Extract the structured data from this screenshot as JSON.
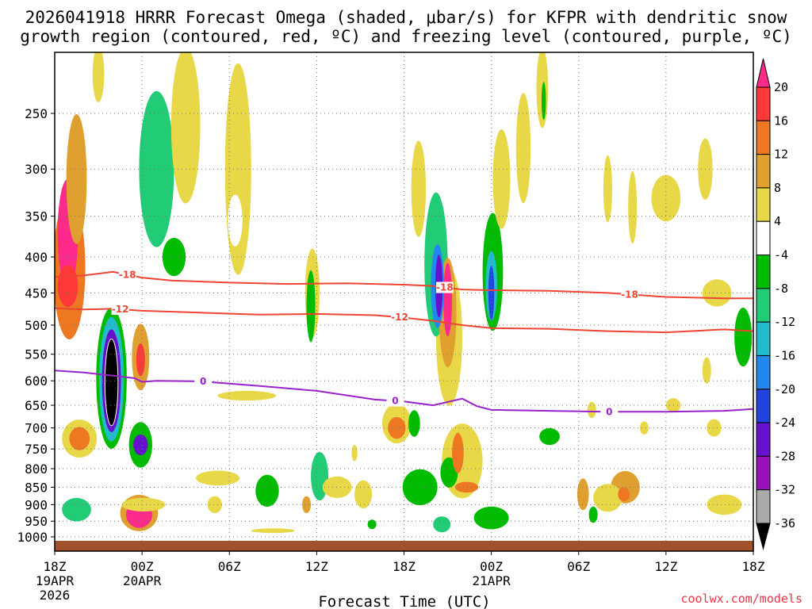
{
  "colors": {
    "dgz": "#ee4433",
    "freezing": "#9922cc",
    "ground": "#a0522d",
    "credit": "#ee3344"
  },
  "chart_data": {
    "type": "heatmap",
    "title_line1": "2026041918 HRRR Forecast Omega (shaded, μbar/s) for KFPR with dendritic snow",
    "title_line2": "growth region (contoured, red, ºC) and freezing level (contoured, purple, ºC)",
    "xlabel": "Forecast Time (UTC)",
    "ylabel": "",
    "credit": "coolwx.com/models",
    "x_range_hours": [
      0,
      48
    ],
    "y_range_mb": [
      200,
      1020
    ],
    "x_ticks": [
      {
        "hour": 0,
        "line1": "18Z",
        "line2": "19APR",
        "line3": "2026"
      },
      {
        "hour": 6,
        "line1": "00Z",
        "line2": "20APR",
        "line3": ""
      },
      {
        "hour": 12,
        "line1": "06Z",
        "line2": "",
        "line3": ""
      },
      {
        "hour": 18,
        "line1": "12Z",
        "line2": "",
        "line3": ""
      },
      {
        "hour": 24,
        "line1": "18Z",
        "line2": "",
        "line3": ""
      },
      {
        "hour": 30,
        "line1": "00Z",
        "line2": "21APR",
        "line3": ""
      },
      {
        "hour": 36,
        "line1": "06Z",
        "line2": "",
        "line3": ""
      },
      {
        "hour": 42,
        "line1": "12Z",
        "line2": "",
        "line3": ""
      },
      {
        "hour": 48,
        "line1": "18Z",
        "line2": "",
        "line3": ""
      }
    ],
    "y_ticks": [
      250,
      300,
      350,
      400,
      450,
      500,
      550,
      600,
      650,
      700,
      750,
      800,
      850,
      900,
      950,
      1000
    ],
    "colorbar": {
      "ticks": [
        "20",
        "16",
        "12",
        "8",
        "4",
        "-4",
        "-8",
        "-12",
        "-16",
        "-20",
        "-24",
        "-28",
        "-32",
        "-36"
      ],
      "colors": [
        "#ff2a8a",
        "#ff3838",
        "#ee7722",
        "#e0a030",
        "#e8d848",
        "#ffffff",
        "#00bb00",
        "#22cc77",
        "#22bbcc",
        "#2288ee",
        "#2244dd",
        "#6611cc",
        "#9911bb",
        "#aaaaaa",
        "#000000"
      ]
    },
    "contours": [
      {
        "name": "minus-18-isotherm",
        "label": "-18",
        "points": [
          [
            0,
            427
          ],
          [
            2,
            425
          ],
          [
            4,
            420
          ],
          [
            6,
            428
          ],
          [
            8,
            432
          ],
          [
            12,
            435
          ],
          [
            16,
            437
          ],
          [
            20,
            436
          ],
          [
            24,
            438
          ],
          [
            26,
            440
          ],
          [
            28,
            445
          ],
          [
            30,
            446
          ],
          [
            34,
            447
          ],
          [
            38,
            450
          ],
          [
            42,
            456
          ],
          [
            46,
            458
          ],
          [
            48,
            458
          ]
        ],
        "labels_at_hours": [
          5,
          26.8,
          39.5
        ]
      },
      {
        "name": "minus-12-isotherm",
        "label": "-12",
        "points": [
          [
            0,
            473
          ],
          [
            2,
            475
          ],
          [
            4,
            474
          ],
          [
            6,
            477
          ],
          [
            10,
            480
          ],
          [
            14,
            483
          ],
          [
            18,
            482
          ],
          [
            22,
            484
          ],
          [
            24,
            488
          ],
          [
            26,
            493
          ],
          [
            28,
            500
          ],
          [
            30,
            505
          ],
          [
            34,
            506
          ],
          [
            38,
            510
          ],
          [
            42,
            512
          ],
          [
            46,
            507
          ],
          [
            48,
            510
          ]
        ],
        "labels_at_hours": [
          4.5,
          23.7
        ]
      },
      {
        "name": "zero-isotherm",
        "label": "0",
        "points": [
          [
            0,
            580
          ],
          [
            2,
            584
          ],
          [
            4,
            590
          ],
          [
            5.5,
            595
          ],
          [
            6,
            602
          ],
          [
            7,
            600
          ],
          [
            10,
            601
          ],
          [
            14,
            610
          ],
          [
            18,
            620
          ],
          [
            22,
            638
          ],
          [
            24,
            642
          ],
          [
            26,
            650
          ],
          [
            28,
            636
          ],
          [
            29,
            652
          ],
          [
            30,
            660
          ],
          [
            34,
            662
          ],
          [
            38,
            664
          ],
          [
            42,
            664
          ],
          [
            46,
            662
          ],
          [
            48,
            658
          ]
        ],
        "labels_at_hours": [
          10.2,
          23.4,
          38.1
        ]
      }
    ],
    "shaded_cells": [
      {
        "t": 0.9,
        "p": 370,
        "rt": 0.7,
        "rp": 130,
        "v": 20
      },
      {
        "t": 0.9,
        "p": 440,
        "rt": 0.7,
        "rp": 60,
        "v": 16
      },
      {
        "t": 1.0,
        "p": 415,
        "rt": 1.1,
        "rp": 190,
        "v": 12
      },
      {
        "t": 1.5,
        "p": 310,
        "rt": 0.7,
        "rp": 130,
        "v": 8
      },
      {
        "t": 3.9,
        "p": 603,
        "rt": 0.45,
        "rp": 170,
        "v": -36
      },
      {
        "t": 3.9,
        "p": 600,
        "rt": 0.65,
        "rp": 200,
        "v": -28
      },
      {
        "t": 3.9,
        "p": 597,
        "rt": 0.85,
        "rp": 240,
        "v": -16
      },
      {
        "t": 3.9,
        "p": 595,
        "rt": 1.05,
        "rp": 270,
        "v": -8
      },
      {
        "t": 5.9,
        "p": 560,
        "rt": 0.3,
        "rp": 60,
        "v": 16
      },
      {
        "t": 5.9,
        "p": 555,
        "rt": 0.6,
        "rp": 120,
        "v": 8
      },
      {
        "t": 5.8,
        "p": 930,
        "rt": 0.9,
        "rp": 80,
        "v": 20
      },
      {
        "t": 5.8,
        "p": 925,
        "rt": 1.3,
        "rp": 110,
        "v": 8
      },
      {
        "t": 5.9,
        "p": 740,
        "rt": 0.5,
        "rp": 50,
        "v": -28
      },
      {
        "t": 5.9,
        "p": 740,
        "rt": 0.8,
        "rp": 110,
        "v": -8
      },
      {
        "t": 1.7,
        "p": 725,
        "rt": 0.7,
        "rp": 55,
        "v": 12
      },
      {
        "t": 1.7,
        "p": 725,
        "rt": 1.2,
        "rp": 90,
        "v": 4
      },
      {
        "t": 1.5,
        "p": 915,
        "rt": 1.0,
        "rp": 70,
        "v": -12
      },
      {
        "t": 1.6,
        "p": 910,
        "rt": 1.5,
        "rp": 110,
        "v": -4
      },
      {
        "t": 7.0,
        "p": 300,
        "rt": 1.2,
        "rp": 150,
        "v": -12
      },
      {
        "t": 7.4,
        "p": 330,
        "rt": 2.0,
        "rp": 200,
        "v": -4
      },
      {
        "t": 9.0,
        "p": 260,
        "rt": 1.0,
        "rp": 130,
        "v": 4
      },
      {
        "t": 8.2,
        "p": 400,
        "rt": 0.8,
        "rp": 50,
        "v": -8
      },
      {
        "t": 8.6,
        "p": 880,
        "rt": 1.2,
        "rp": 80,
        "v": -4
      },
      {
        "t": 6.1,
        "p": 900,
        "rt": 1.5,
        "rp": 40,
        "v": 4
      },
      {
        "t": 12.6,
        "p": 300,
        "rt": 0.9,
        "rp": 200,
        "v": 4
      },
      {
        "t": 12.4,
        "p": 355,
        "rt": 0.5,
        "rp": 60,
        "v": -4
      },
      {
        "t": 14.6,
        "p": 860,
        "rt": 0.8,
        "rp": 90,
        "v": -8
      },
      {
        "t": 13.2,
        "p": 630,
        "rt": 2.0,
        "rp": 20,
        "v": 4
      },
      {
        "t": 11.2,
        "p": 825,
        "rt": 1.5,
        "rp": 40,
        "v": 4
      },
      {
        "t": 11.0,
        "p": 900,
        "rt": 0.5,
        "rp": 50,
        "v": 4
      },
      {
        "t": 17.6,
        "p": 470,
        "rt": 0.3,
        "rp": 110,
        "v": -8
      },
      {
        "t": 17.7,
        "p": 450,
        "rt": 0.5,
        "rp": 130,
        "v": 4
      },
      {
        "t": 18.2,
        "p": 820,
        "rt": 0.6,
        "rp": 130,
        "v": -12
      },
      {
        "t": 19.1,
        "p": 455,
        "rt": 0.4,
        "rp": 80,
        "v": -4
      },
      {
        "t": 19.4,
        "p": 850,
        "rt": 1.0,
        "rp": 60,
        "v": 4
      },
      {
        "t": 17.3,
        "p": 900,
        "rt": 0.3,
        "rp": 50,
        "v": 8
      },
      {
        "t": 21.6,
        "p": 500,
        "rt": 1.0,
        "rp": 260,
        "v": -4
      },
      {
        "t": 21.2,
        "p": 870,
        "rt": 0.6,
        "rp": 80,
        "v": 4
      },
      {
        "t": 23.5,
        "p": 700,
        "rt": 0.6,
        "rp": 50,
        "v": 12
      },
      {
        "t": 23.5,
        "p": 690,
        "rt": 1.0,
        "rp": 90,
        "v": 4
      },
      {
        "t": 24.7,
        "p": 690,
        "rt": 0.4,
        "rp": 60,
        "v": -8
      },
      {
        "t": 25.1,
        "p": 850,
        "rt": 1.2,
        "rp": 100,
        "v": -8
      },
      {
        "t": 26.4,
        "p": 440,
        "rt": 0.25,
        "rp": 90,
        "v": -28
      },
      {
        "t": 26.3,
        "p": 440,
        "rt": 0.45,
        "rp": 120,
        "v": -20
      },
      {
        "t": 26.2,
        "p": 410,
        "rt": 0.8,
        "rp": 190,
        "v": -12
      },
      {
        "t": 26.0,
        "p": 360,
        "rt": 1.2,
        "rp": 300,
        "v": -4
      },
      {
        "t": 27.0,
        "p": 460,
        "rt": 0.3,
        "rp": 110,
        "v": 20
      },
      {
        "t": 27.0,
        "p": 480,
        "rt": 0.6,
        "rp": 170,
        "v": 8
      },
      {
        "t": 27.1,
        "p": 520,
        "rt": 0.9,
        "rp": 230,
        "v": 4
      },
      {
        "t": 27.7,
        "p": 760,
        "rt": 0.4,
        "rp": 100,
        "v": 12
      },
      {
        "t": 28.0,
        "p": 780,
        "rt": 1.4,
        "rp": 190,
        "v": 4
      },
      {
        "t": 28.3,
        "p": 850,
        "rt": 0.8,
        "rp": 30,
        "v": 12
      },
      {
        "t": 27.1,
        "p": 810,
        "rt": 0.6,
        "rp": 80,
        "v": -8
      },
      {
        "t": 26.6,
        "p": 960,
        "rt": 0.6,
        "rp": 50,
        "v": -12
      },
      {
        "t": 30.0,
        "p": 450,
        "rt": 0.2,
        "rp": 80,
        "v": -24
      },
      {
        "t": 30.0,
        "p": 440,
        "rt": 0.4,
        "rp": 100,
        "v": -16
      },
      {
        "t": 30.1,
        "p": 420,
        "rt": 0.7,
        "rp": 160,
        "v": -8
      },
      {
        "t": 29.0,
        "p": 460,
        "rt": 0.8,
        "rp": 150,
        "v": -4
      },
      {
        "t": 30.0,
        "p": 940,
        "rt": 1.2,
        "rp": 70,
        "v": -8
      },
      {
        "t": 30.7,
        "p": 310,
        "rt": 0.6,
        "rp": 100,
        "v": 4
      },
      {
        "t": 33.5,
        "p": 230,
        "rt": 0.4,
        "rp": 60,
        "v": 4
      },
      {
        "t": 34.0,
        "p": 720,
        "rt": 0.7,
        "rp": 40,
        "v": -8
      },
      {
        "t": 34.6,
        "p": 600,
        "rt": 0.5,
        "rp": 60,
        "v": -4
      },
      {
        "t": 36.3,
        "p": 870,
        "rt": 0.4,
        "rp": 90,
        "v": 8
      },
      {
        "t": 37.0,
        "p": 930,
        "rt": 0.3,
        "rp": 50,
        "v": -8
      },
      {
        "t": 38.0,
        "p": 880,
        "rt": 1.0,
        "rp": 80,
        "v": 4
      },
      {
        "t": 39.1,
        "p": 870,
        "rt": 0.4,
        "rp": 40,
        "v": 12
      },
      {
        "t": 39.2,
        "p": 850,
        "rt": 1.0,
        "rp": 90,
        "v": 8
      },
      {
        "t": 38.0,
        "p": 320,
        "rt": 0.3,
        "rp": 70,
        "v": 4
      },
      {
        "t": 39.7,
        "p": 340,
        "rt": 0.3,
        "rp": 80,
        "v": 4
      },
      {
        "t": 42.0,
        "p": 330,
        "rt": 1.0,
        "rp": 50,
        "v": 4
      },
      {
        "t": 44.7,
        "p": 300,
        "rt": 0.5,
        "rp": 60,
        "v": 4
      },
      {
        "t": 45.5,
        "p": 450,
        "rt": 1.0,
        "rp": 40,
        "v": 4
      },
      {
        "t": 44.8,
        "p": 580,
        "rt": 0.3,
        "rp": 50,
        "v": 4
      },
      {
        "t": 46.0,
        "p": 900,
        "rt": 1.2,
        "rp": 60,
        "v": 4
      },
      {
        "t": 47.3,
        "p": 520,
        "rt": 0.6,
        "rp": 100,
        "v": -8
      },
      {
        "t": 45.3,
        "p": 700,
        "rt": 0.5,
        "rp": 40,
        "v": 4
      },
      {
        "t": 42.5,
        "p": 650,
        "rt": 0.5,
        "rp": 30,
        "v": 4
      },
      {
        "t": 40.5,
        "p": 700,
        "rt": 0.3,
        "rp": 30,
        "v": 4
      },
      {
        "t": 36.9,
        "p": 660,
        "rt": 0.3,
        "rp": 35,
        "v": 4
      },
      {
        "t": 25.0,
        "p": 320,
        "rt": 0.5,
        "rp": 100,
        "v": 4
      },
      {
        "t": 32.2,
        "p": 280,
        "rt": 0.5,
        "rp": 100,
        "v": 4
      },
      {
        "t": 23.2,
        "p": 220,
        "rt": 0.2,
        "rp": 30,
        "v": -4
      },
      {
        "t": 33.6,
        "p": 240,
        "rt": 0.15,
        "rp": 30,
        "v": -8
      },
      {
        "t": 3.0,
        "p": 220,
        "rt": 0.4,
        "rp": 40,
        "v": 4
      },
      {
        "t": 15.0,
        "p": 980,
        "rt": 1.5,
        "rp": 15,
        "v": 4
      },
      {
        "t": 21.8,
        "p": 960,
        "rt": 0.3,
        "rp": 30,
        "v": -8
      },
      {
        "t": 20.6,
        "p": 760,
        "rt": 0.2,
        "rp": 40,
        "v": 4
      }
    ]
  }
}
